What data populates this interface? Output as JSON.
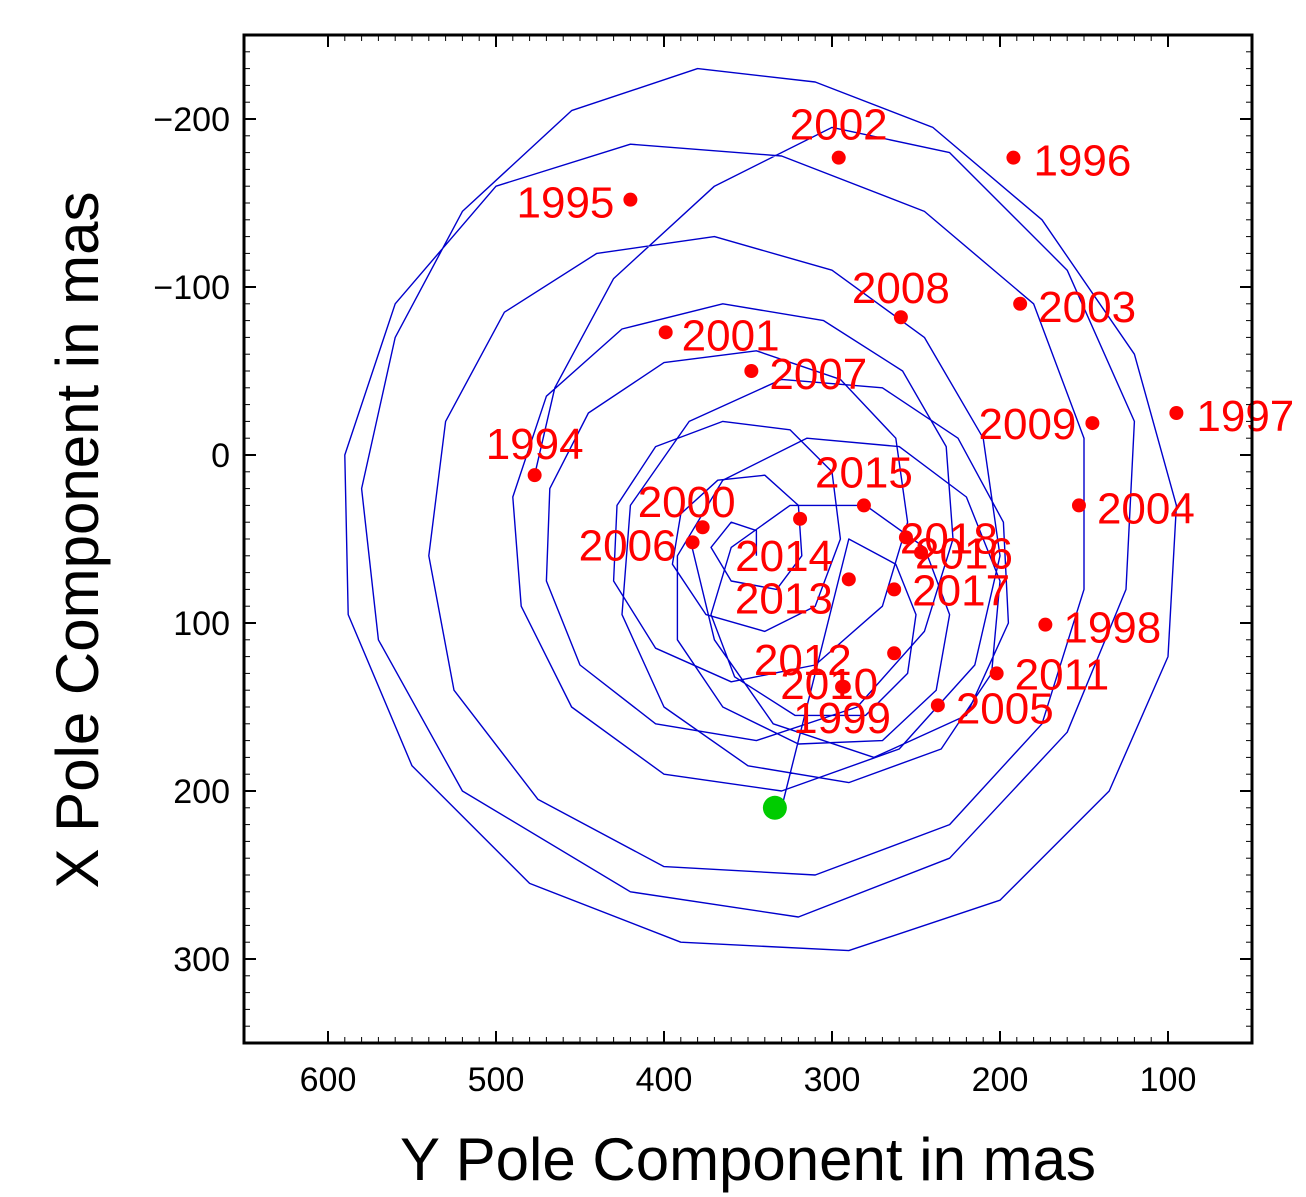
{
  "chart_data": {
    "type": "scatter",
    "title": "",
    "xlabel": "Y Pole Component in mas",
    "ylabel": "X Pole Component in mas",
    "xlim": [
      650,
      50
    ],
    "ylim": [
      -250,
      350
    ],
    "x_ticks": [
      600,
      500,
      400,
      300,
      200,
      100
    ],
    "y_ticks": [
      -200,
      -100,
      0,
      100,
      200,
      300
    ],
    "x_tick_labels": [
      "600",
      "500",
      "400",
      "300",
      "200",
      "100"
    ],
    "y_tick_labels": [
      "−200",
      "−100",
      "0",
      "100",
      "200",
      "300"
    ],
    "grid": false,
    "legend": "none",
    "series": [
      {
        "color": "#0000cc",
        "style": "line",
        "description": "polar motion path",
        "path": [
          [
            477,
            12
          ],
          [
            465,
            -40
          ],
          [
            430,
            -105
          ],
          [
            370,
            -160
          ],
          [
            300,
            -195
          ],
          [
            230,
            -180
          ],
          [
            160,
            -110
          ],
          [
            120,
            -20
          ],
          [
            125,
            80
          ],
          [
            160,
            165
          ],
          [
            230,
            240
          ],
          [
            320,
            275
          ],
          [
            420,
            260
          ],
          [
            520,
            200
          ],
          [
            570,
            110
          ],
          [
            580,
            20
          ],
          [
            560,
            -70
          ],
          [
            520,
            -145
          ],
          [
            455,
            -205
          ],
          [
            380,
            -230
          ],
          [
            310,
            -222
          ],
          [
            240,
            -195
          ],
          [
            175,
            -140
          ],
          [
            120,
            -60
          ],
          [
            95,
            30
          ],
          [
            100,
            120
          ],
          [
            135,
            200
          ],
          [
            200,
            265
          ],
          [
            290,
            295
          ],
          [
            390,
            290
          ],
          [
            480,
            255
          ],
          [
            550,
            185
          ],
          [
            588,
            95
          ],
          [
            590,
            0
          ],
          [
            560,
            -90
          ],
          [
            500,
            -160
          ],
          [
            420,
            -185
          ],
          [
            330,
            -178
          ],
          [
            245,
            -145
          ],
          [
            180,
            -90
          ],
          [
            150,
            -10
          ],
          [
            150,
            80
          ],
          [
            175,
            160
          ],
          [
            230,
            220
          ],
          [
            310,
            250
          ],
          [
            400,
            245
          ],
          [
            475,
            205
          ],
          [
            525,
            140
          ],
          [
            540,
            60
          ],
          [
            530,
            -20
          ],
          [
            495,
            -85
          ],
          [
            440,
            -120
          ],
          [
            370,
            -130
          ],
          [
            300,
            -110
          ],
          [
            245,
            -70
          ],
          [
            210,
            -10
          ],
          [
            200,
            60
          ],
          [
            215,
            125
          ],
          [
            260,
            175
          ],
          [
            330,
            200
          ],
          [
            400,
            190
          ],
          [
            455,
            150
          ],
          [
            485,
            90
          ],
          [
            490,
            25
          ],
          [
            470,
            -35
          ],
          [
            425,
            -75
          ],
          [
            365,
            -90
          ],
          [
            305,
            -80
          ],
          [
            258,
            -50
          ],
          [
            232,
            -5
          ],
          [
            228,
            50
          ],
          [
            245,
            105
          ],
          [
            285,
            150
          ],
          [
            345,
            170
          ],
          [
            405,
            160
          ],
          [
            450,
            125
          ],
          [
            470,
            75
          ],
          [
            468,
            20
          ],
          [
            445,
            -25
          ],
          [
            400,
            -55
          ],
          [
            345,
            -62
          ],
          [
            295,
            -45
          ],
          [
            262,
            -10
          ],
          [
            255,
            40
          ],
          [
            270,
            90
          ],
          [
            310,
            125
          ],
          [
            360,
            135
          ],
          [
            405,
            115
          ],
          [
            430,
            75
          ],
          [
            428,
            30
          ],
          [
            405,
            -5
          ],
          [
            365,
            -20
          ],
          [
            325,
            -15
          ],
          [
            300,
            10
          ],
          [
            295,
            50
          ],
          [
            310,
            90
          ],
          [
            340,
            105
          ],
          [
            375,
            95
          ],
          [
            395,
            65
          ],
          [
            390,
            35
          ],
          [
            368,
            15
          ],
          [
            340,
            12
          ],
          [
            320,
            30
          ],
          [
            318,
            60
          ],
          [
            333,
            80
          ],
          [
            360,
            75
          ],
          [
            372,
            55
          ],
          [
            360,
            40
          ],
          [
            345,
            45
          ],
          [
            345,
            60
          ]
        ]
      },
      {
        "color": "#0000cc",
        "style": "line",
        "description": "polar motion path (recent years)",
        "path": [
          [
            384,
            52
          ],
          [
            370,
            110
          ],
          [
            335,
            160
          ],
          [
            275,
            180
          ],
          [
            220,
            155
          ],
          [
            195,
            100
          ],
          [
            198,
            40
          ],
          [
            225,
            -10
          ],
          [
            270,
            -40
          ],
          [
            330,
            -45
          ],
          [
            385,
            -20
          ],
          [
            420,
            30
          ],
          [
            425,
            95
          ],
          [
            400,
            150
          ],
          [
            350,
            185
          ],
          [
            290,
            195
          ],
          [
            235,
            175
          ],
          [
            205,
            130
          ],
          [
            200,
            75
          ],
          [
            220,
            25
          ],
          [
            260,
            -5
          ],
          [
            315,
            -10
          ],
          [
            365,
            15
          ],
          [
            392,
            60
          ],
          [
            392,
            110
          ],
          [
            365,
            150
          ],
          [
            320,
            172
          ],
          [
            270,
            170
          ],
          [
            238,
            140
          ],
          [
            230,
            95
          ],
          [
            245,
            55
          ],
          [
            280,
            30
          ],
          [
            325,
            30
          ],
          [
            360,
            55
          ],
          [
            372,
            95
          ],
          [
            358,
            132
          ],
          [
            322,
            155
          ],
          [
            280,
            155
          ],
          [
            255,
            130
          ],
          [
            250,
            95
          ],
          [
            262,
            65
          ],
          [
            290,
            50
          ],
          [
            330,
            210
          ]
        ]
      },
      {
        "color": "#ff0000",
        "style": "points",
        "description": "year markers",
        "points": [
          {
            "label": "1994",
            "x": 477,
            "y": 12
          },
          {
            "label": "1995",
            "x": 420,
            "y": -152
          },
          {
            "label": "1996",
            "x": 192,
            "y": -177
          },
          {
            "label": "1997",
            "x": 95,
            "y": -25
          },
          {
            "label": "1998",
            "x": 173,
            "y": 101
          },
          {
            "label": "1999",
            "x": 294,
            "y": 138
          },
          {
            "label": "2000",
            "x": 377,
            "y": 43
          },
          {
            "label": "2001",
            "x": 399,
            "y": -73
          },
          {
            "label": "2002",
            "x": 296,
            "y": -177
          },
          {
            "label": "2003",
            "x": 188,
            "y": -90
          },
          {
            "label": "2004",
            "x": 153,
            "y": 30
          },
          {
            "label": "2005",
            "x": 237,
            "y": 149
          },
          {
            "label": "2006",
            "x": 383,
            "y": 52
          },
          {
            "label": "2007",
            "x": 348,
            "y": -50
          },
          {
            "label": "2008",
            "x": 259,
            "y": -82
          },
          {
            "label": "2009",
            "x": 145,
            "y": -19
          },
          {
            "label": "2010",
            "x": 263,
            "y": 118
          },
          {
            "label": "2011",
            "x": 202,
            "y": 130
          },
          {
            "label": "2012",
            "x": 293,
            "y": 138
          },
          {
            "label": "2013",
            "x": 290,
            "y": 74
          },
          {
            "label": "2014",
            "x": 319,
            "y": 38
          },
          {
            "label": "2015",
            "x": 281,
            "y": 30
          },
          {
            "label": "2016",
            "x": 247,
            "y": 58
          },
          {
            "label": "2017",
            "x": 263,
            "y": 80
          },
          {
            "label": "2018",
            "x": 256,
            "y": 49
          }
        ]
      },
      {
        "color": "#00cc00",
        "style": "point",
        "description": "current position",
        "points": [
          {
            "x": 334,
            "y": 210
          }
        ]
      }
    ]
  }
}
